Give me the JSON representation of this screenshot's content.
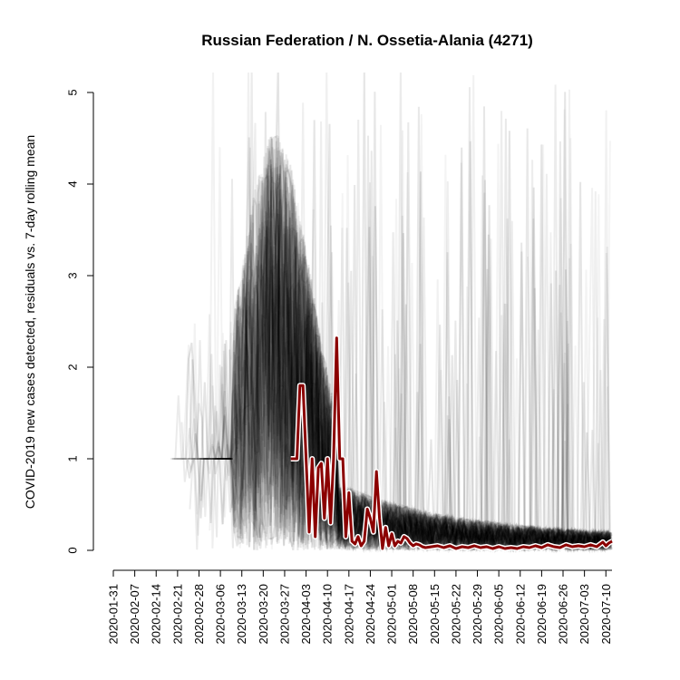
{
  "chart_data": {
    "type": "line",
    "title": "Russian Federation / N. Ossetia-Alania (4271)",
    "xlabel": "",
    "ylabel": "COVID-2019 new cases detected, residuals vs. 7-day rolling mean",
    "x_start": "2020-01-31",
    "x_end": "2020-07-12",
    "xlim": [
      "2020-01-31",
      "2020-07-12"
    ],
    "ylim": [
      0,
      5
    ],
    "y_ticks": [
      0,
      1,
      2,
      3,
      4,
      5
    ],
    "x_tick_labels": [
      "2020-01-31",
      "2020-02-07",
      "2020-02-14",
      "2020-02-21",
      "2020-02-28",
      "2020-03-06",
      "2020-03-13",
      "2020-03-20",
      "2020-03-27",
      "2020-04-03",
      "2020-04-10",
      "2020-04-17",
      "2020-04-24",
      "2020-05-01",
      "2020-05-08",
      "2020-05-15",
      "2020-05-22",
      "2020-05-29",
      "2020-06-05",
      "2020-06-12",
      "2020-06-19",
      "2020-06-26",
      "2020-07-03",
      "2020-07-10"
    ],
    "grid": false,
    "legend": "none",
    "colors": {
      "highlight": "#8b0000",
      "background_series": "#000000"
    },
    "highlight_series": {
      "points": [
        [
          "2020-03-29",
          1.0
        ],
        [
          "2020-03-31",
          1.0
        ],
        [
          "2020-04-01",
          1.8
        ],
        [
          "2020-04-02",
          1.8
        ],
        [
          "2020-04-03",
          1.0
        ],
        [
          "2020-04-04",
          0.2
        ],
        [
          "2020-04-05",
          1.0
        ],
        [
          "2020-04-06",
          0.15
        ],
        [
          "2020-04-07",
          0.9
        ],
        [
          "2020-04-08",
          0.95
        ],
        [
          "2020-04-09",
          0.35
        ],
        [
          "2020-04-10",
          1.0
        ],
        [
          "2020-04-11",
          0.3
        ],
        [
          "2020-04-12",
          1.0
        ],
        [
          "2020-04-13",
          2.32
        ],
        [
          "2020-04-14",
          1.0
        ],
        [
          "2020-04-15",
          1.0
        ],
        [
          "2020-04-16",
          0.15
        ],
        [
          "2020-04-17",
          0.63
        ],
        [
          "2020-04-18",
          0.1
        ],
        [
          "2020-04-19",
          0.07
        ],
        [
          "2020-04-20",
          0.15
        ],
        [
          "2020-04-21",
          0.05
        ],
        [
          "2020-04-22",
          0.1
        ],
        [
          "2020-04-23",
          0.45
        ],
        [
          "2020-04-24",
          0.35
        ],
        [
          "2020-04-25",
          0.2
        ],
        [
          "2020-04-26",
          0.86
        ],
        [
          "2020-04-27",
          0.35
        ],
        [
          "2020-04-28",
          0.02
        ],
        [
          "2020-04-29",
          0.25
        ],
        [
          "2020-04-30",
          0.05
        ],
        [
          "2020-05-01",
          0.18
        ],
        [
          "2020-05-02",
          0.05
        ],
        [
          "2020-05-03",
          0.1
        ],
        [
          "2020-05-04",
          0.08
        ],
        [
          "2020-05-05",
          0.15
        ],
        [
          "2020-05-06",
          0.13
        ],
        [
          "2020-05-07",
          0.08
        ],
        [
          "2020-05-08",
          0.05
        ],
        [
          "2020-05-09",
          0.07
        ],
        [
          "2020-05-10",
          0.06
        ],
        [
          "2020-05-11",
          0.04
        ],
        [
          "2020-05-12",
          0.03
        ],
        [
          "2020-05-14",
          0.04
        ],
        [
          "2020-05-16",
          0.05
        ],
        [
          "2020-05-18",
          0.03
        ],
        [
          "2020-05-20",
          0.05
        ],
        [
          "2020-05-22",
          0.02
        ],
        [
          "2020-05-24",
          0.04
        ],
        [
          "2020-05-26",
          0.03
        ],
        [
          "2020-05-28",
          0.05
        ],
        [
          "2020-05-30",
          0.03
        ],
        [
          "2020-06-01",
          0.04
        ],
        [
          "2020-06-03",
          0.02
        ],
        [
          "2020-06-05",
          0.04
        ],
        [
          "2020-06-07",
          0.02
        ],
        [
          "2020-06-09",
          0.03
        ],
        [
          "2020-06-11",
          0.02
        ],
        [
          "2020-06-13",
          0.04
        ],
        [
          "2020-06-15",
          0.03
        ],
        [
          "2020-06-17",
          0.05
        ],
        [
          "2020-06-19",
          0.03
        ],
        [
          "2020-06-21",
          0.06
        ],
        [
          "2020-06-23",
          0.04
        ],
        [
          "2020-06-25",
          0.03
        ],
        [
          "2020-06-27",
          0.06
        ],
        [
          "2020-06-29",
          0.04
        ],
        [
          "2020-07-01",
          0.05
        ],
        [
          "2020-07-03",
          0.04
        ],
        [
          "2020-07-05",
          0.06
        ],
        [
          "2020-07-07",
          0.04
        ],
        [
          "2020-07-09",
          0.09
        ],
        [
          "2020-07-10",
          0.05
        ],
        [
          "2020-07-11",
          0.08
        ],
        [
          "2020-07-12",
          0.1
        ]
      ]
    }
  }
}
